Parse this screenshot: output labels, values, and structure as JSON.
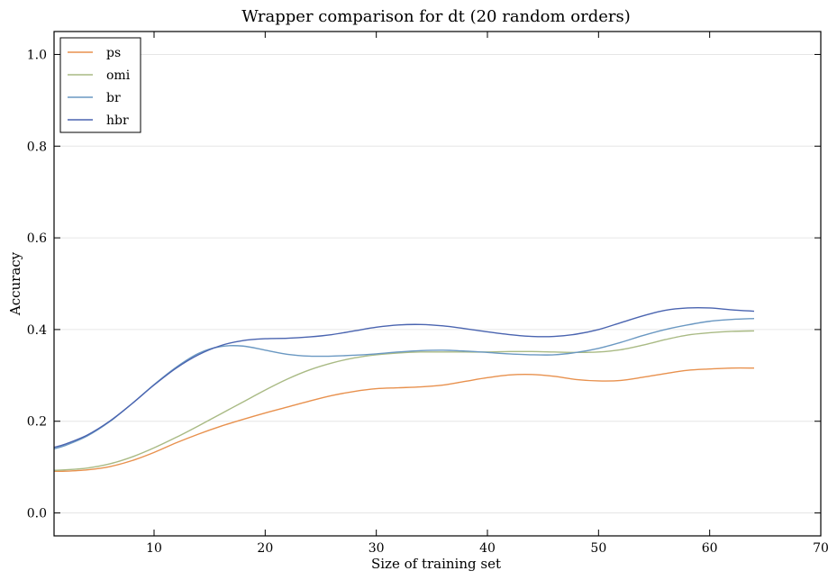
{
  "chart_data": {
    "type": "line",
    "title": "Wrapper comparison for dt (20 random orders)",
    "xlabel": "Size of training set",
    "ylabel": "Accuracy",
    "xlim": [
      1,
      70
    ],
    "ylim": [
      -0.05,
      1.05
    ],
    "xticks": [
      10,
      20,
      30,
      40,
      50,
      60,
      70
    ],
    "yticks": [
      0.0,
      0.2,
      0.4,
      0.6,
      0.8,
      1.0
    ],
    "xtick_labels": [
      "10",
      "20",
      "30",
      "40",
      "50",
      "60",
      "70"
    ],
    "ytick_labels": [
      "0.0",
      "0.2",
      "0.4",
      "0.6",
      "0.8",
      "1.0"
    ],
    "grid": "horizontal",
    "legend_position": "top-left",
    "series": [
      {
        "name": "ps",
        "color": "#e8914e",
        "x": [
          1,
          2,
          4,
          6,
          8,
          10,
          12,
          14,
          16,
          18,
          20,
          22,
          24,
          26,
          28,
          30,
          32,
          34,
          36,
          38,
          40,
          42,
          44,
          46,
          48,
          50,
          52,
          54,
          56,
          58,
          60,
          62,
          64
        ],
        "y": [
          0.091,
          0.091,
          0.094,
          0.101,
          0.114,
          0.132,
          0.153,
          0.172,
          0.189,
          0.204,
          0.218,
          0.231,
          0.244,
          0.256,
          0.265,
          0.271,
          0.273,
          0.275,
          0.279,
          0.287,
          0.295,
          0.301,
          0.302,
          0.298,
          0.291,
          0.288,
          0.289,
          0.296,
          0.304,
          0.311,
          0.314,
          0.316,
          0.316
        ]
      },
      {
        "name": "omi",
        "color": "#a9ba84",
        "x": [
          1,
          2,
          4,
          6,
          8,
          10,
          12,
          14,
          16,
          18,
          20,
          22,
          24,
          26,
          28,
          30,
          32,
          34,
          36,
          38,
          40,
          42,
          44,
          46,
          48,
          50,
          52,
          54,
          56,
          58,
          60,
          62,
          64
        ],
        "y": [
          0.093,
          0.094,
          0.098,
          0.107,
          0.122,
          0.142,
          0.165,
          0.19,
          0.216,
          0.242,
          0.268,
          0.292,
          0.312,
          0.327,
          0.338,
          0.345,
          0.349,
          0.351,
          0.351,
          0.351,
          0.351,
          0.352,
          0.352,
          0.351,
          0.35,
          0.351,
          0.356,
          0.366,
          0.378,
          0.388,
          0.393,
          0.396,
          0.397
        ]
      },
      {
        "name": "br",
        "color": "#6a98c2",
        "x": [
          1,
          2,
          4,
          6,
          8,
          10,
          12,
          14,
          16,
          18,
          20,
          22,
          24,
          26,
          28,
          30,
          32,
          34,
          36,
          38,
          40,
          42,
          44,
          46,
          48,
          50,
          52,
          54,
          56,
          58,
          60,
          62,
          64
        ],
        "y": [
          0.14,
          0.147,
          0.168,
          0.199,
          0.238,
          0.28,
          0.318,
          0.348,
          0.363,
          0.364,
          0.355,
          0.346,
          0.342,
          0.342,
          0.344,
          0.347,
          0.351,
          0.354,
          0.355,
          0.353,
          0.35,
          0.347,
          0.345,
          0.345,
          0.35,
          0.359,
          0.372,
          0.387,
          0.4,
          0.41,
          0.418,
          0.422,
          0.424
        ]
      },
      {
        "name": "hbr",
        "color": "#4a64b0",
        "x": [
          1,
          2,
          4,
          6,
          8,
          10,
          12,
          14,
          16,
          18,
          20,
          22,
          24,
          26,
          28,
          30,
          32,
          34,
          36,
          38,
          40,
          42,
          44,
          46,
          48,
          50,
          52,
          54,
          56,
          58,
          60,
          62,
          64
        ],
        "y": [
          0.143,
          0.15,
          0.17,
          0.2,
          0.238,
          0.279,
          0.316,
          0.345,
          0.365,
          0.376,
          0.38,
          0.381,
          0.384,
          0.389,
          0.397,
          0.405,
          0.41,
          0.411,
          0.408,
          0.402,
          0.395,
          0.389,
          0.385,
          0.385,
          0.39,
          0.4,
          0.415,
          0.43,
          0.442,
          0.447,
          0.447,
          0.443,
          0.44
        ]
      }
    ]
  }
}
